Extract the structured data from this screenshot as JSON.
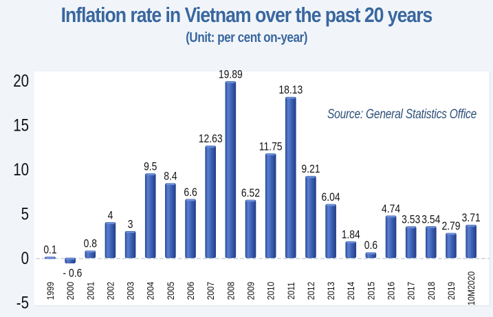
{
  "chart_data": {
    "type": "bar",
    "title": "Inflation rate in Vietnam over the past 20 years",
    "subtitle": "(Unit: per cent on-year)",
    "source": "Source: General Statistics Office",
    "xlabel": "",
    "ylabel": "",
    "ylim": [
      -5,
      20
    ],
    "yticks": [
      "-5",
      "0",
      "5",
      "10",
      "15",
      "20"
    ],
    "ytick_values": [
      -5,
      0,
      5,
      10,
      15,
      20
    ],
    "grid": false,
    "legend": "none",
    "categories": [
      "1999",
      "2000",
      "2001",
      "2002",
      "2003",
      "2004",
      "2005",
      "2006",
      "2007",
      "2008",
      "2009",
      "2010",
      "2011",
      "2012",
      "2013",
      "2014",
      "2015",
      "2016",
      "2017",
      "2018",
      "2019",
      "10M2020"
    ],
    "values": [
      0.1,
      -0.6,
      0.8,
      4,
      3,
      9.5,
      8.4,
      6.6,
      12.63,
      19.89,
      6.52,
      11.75,
      18.13,
      9.21,
      6.04,
      1.84,
      0.6,
      4.74,
      3.53,
      3.54,
      2.79,
      3.71
    ],
    "data_labels": [
      "0.1",
      "- 0.6",
      "0.8",
      "4",
      "3",
      "9.5",
      "8.4",
      "6.6",
      "12.63",
      "19.89",
      "6.52",
      "11.75",
      "18.13",
      "9.21",
      "6.04",
      "1.84",
      "0.6",
      "4.74",
      "3.53",
      "3.54",
      "2.79",
      "3.71"
    ],
    "bar_color": "#3f63b8",
    "bar_color_light": "#6a8ed6",
    "bar_color_dark": "#22408a",
    "title_color": "#3a679e"
  }
}
